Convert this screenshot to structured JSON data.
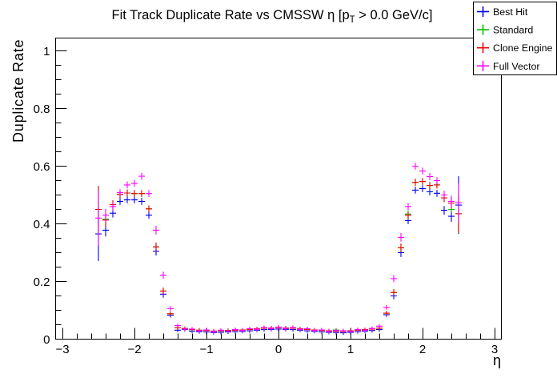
{
  "title": {
    "prefix": "Fit Track Duplicate Rate vs CMSSW η [p",
    "subscript": "T",
    "suffix": " > 0.0 GeV/c]"
  },
  "axes": {
    "x_label": "η",
    "y_label": "Duplicate Rate",
    "x_tick_labels": [
      "−3",
      "−2",
      "−1",
      "0",
      "1",
      "2",
      "3"
    ],
    "x_tick_values": [
      -3,
      -2,
      -1,
      0,
      1,
      2,
      3
    ],
    "y_tick_labels": [
      "0",
      "0.2",
      "0.4",
      "0.6",
      "0.8",
      "1"
    ],
    "y_tick_values": [
      0,
      0.2,
      0.4,
      0.6,
      0.8,
      1
    ],
    "x_minor_step": 0.2,
    "y_minor_step": 0.05
  },
  "legend": {
    "entries": [
      {
        "label": "Best Hit",
        "color": "#0000f0"
      },
      {
        "label": "Standard",
        "color": "#00c000"
      },
      {
        "label": "Clone Engine",
        "color": "#f00000"
      },
      {
        "label": "Full Vector",
        "color": "#ff00ff"
      }
    ]
  },
  "chart_data": {
    "type": "scatter",
    "title": "Fit Track Duplicate Rate vs CMSSW η [p_T > 0.0 GeV/c]",
    "xlabel": "η",
    "ylabel": "Duplicate Rate",
    "xlim": [
      -3.094,
      3.094
    ],
    "ylim": [
      0,
      1.046
    ],
    "xerr": 0.0445,
    "x": [
      -2.5,
      -2.4,
      -2.3,
      -2.2,
      -2.1,
      -2.0,
      -1.9,
      -1.8,
      -1.7,
      -1.6,
      -1.5,
      -1.4,
      -1.3,
      -1.2,
      -1.1,
      -1.0,
      -0.9,
      -0.8,
      -0.7,
      -0.6,
      -0.5,
      -0.4,
      -0.3,
      -0.2,
      -0.1,
      0.0,
      0.1,
      0.2,
      0.3,
      0.4,
      0.5,
      0.6,
      0.7,
      0.8,
      0.9,
      1.0,
      1.1,
      1.2,
      1.3,
      1.4,
      1.5,
      1.6,
      1.7,
      1.8,
      1.9,
      2.0,
      2.1,
      2.2,
      2.3,
      2.4,
      2.5
    ],
    "series": [
      {
        "name": "Best Hit",
        "color": "#0000f0",
        "y": [
          0.365,
          0.378,
          0.437,
          0.478,
          0.483,
          0.483,
          0.478,
          0.43,
          0.305,
          0.156,
          0.083,
          0.031,
          0.033,
          0.028,
          0.026,
          0.025,
          0.023,
          0.024,
          0.025,
          0.026,
          0.027,
          0.029,
          0.031,
          0.033,
          0.034,
          0.035,
          0.034,
          0.033,
          0.031,
          0.029,
          0.027,
          0.025,
          0.024,
          0.023,
          0.022,
          0.024,
          0.026,
          0.028,
          0.03,
          0.033,
          0.085,
          0.15,
          0.3,
          0.411,
          0.517,
          0.522,
          0.511,
          0.506,
          0.447,
          0.426,
          0.465
        ],
        "yerr": [
          0.094,
          0.022,
          0.015,
          0.012,
          0.012,
          0.012,
          0.012,
          0.012,
          0.015,
          0.012,
          0.008,
          0.005,
          0.003,
          0.003,
          0.003,
          0.003,
          0.003,
          0.003,
          0.003,
          0.003,
          0.003,
          0.003,
          0.003,
          0.003,
          0.003,
          0.003,
          0.003,
          0.003,
          0.003,
          0.003,
          0.003,
          0.003,
          0.003,
          0.003,
          0.003,
          0.003,
          0.003,
          0.003,
          0.003,
          0.005,
          0.008,
          0.012,
          0.015,
          0.012,
          0.012,
          0.012,
          0.012,
          0.012,
          0.015,
          0.02,
          0.1
        ]
      },
      {
        "name": "Standard",
        "color": "#00c000",
        "y": [
          0.45,
          0.416,
          0.467,
          0.502,
          0.507,
          0.505,
          0.505,
          0.452,
          0.32,
          0.167,
          0.088,
          0.04,
          0.037,
          0.033,
          0.031,
          0.03,
          0.028,
          0.029,
          0.03,
          0.031,
          0.032,
          0.034,
          0.036,
          0.038,
          0.039,
          0.041,
          0.039,
          0.038,
          0.036,
          0.034,
          0.032,
          0.03,
          0.029,
          0.032,
          0.027,
          0.029,
          0.031,
          0.033,
          0.035,
          0.038,
          0.09,
          0.162,
          0.317,
          0.434,
          0.544,
          0.547,
          0.533,
          0.535,
          0.49,
          0.45,
          0.435
        ],
        "yerr": [
          0.081,
          0.022,
          0.015,
          0.012,
          0.012,
          0.012,
          0.012,
          0.012,
          0.015,
          0.012,
          0.008,
          0.005,
          0.003,
          0.003,
          0.003,
          0.003,
          0.003,
          0.003,
          0.003,
          0.003,
          0.003,
          0.003,
          0.003,
          0.003,
          0.003,
          0.003,
          0.003,
          0.003,
          0.003,
          0.003,
          0.003,
          0.003,
          0.003,
          0.003,
          0.003,
          0.003,
          0.003,
          0.003,
          0.003,
          0.005,
          0.008,
          0.012,
          0.015,
          0.012,
          0.012,
          0.012,
          0.012,
          0.012,
          0.015,
          0.01,
          0.06
        ]
      },
      {
        "name": "Clone Engine",
        "color": "#f00000",
        "y": [
          0.45,
          0.413,
          0.467,
          0.502,
          0.507,
          0.505,
          0.505,
          0.452,
          0.32,
          0.167,
          0.088,
          0.04,
          0.037,
          0.033,
          0.031,
          0.03,
          0.028,
          0.029,
          0.03,
          0.031,
          0.032,
          0.034,
          0.036,
          0.038,
          0.039,
          0.04,
          0.039,
          0.038,
          0.036,
          0.034,
          0.032,
          0.03,
          0.029,
          0.028,
          0.027,
          0.029,
          0.031,
          0.033,
          0.035,
          0.038,
          0.09,
          0.162,
          0.317,
          0.43,
          0.544,
          0.547,
          0.533,
          0.535,
          0.49,
          0.472,
          0.435
        ],
        "yerr": [
          0.081,
          0.022,
          0.015,
          0.012,
          0.012,
          0.012,
          0.012,
          0.012,
          0.015,
          0.012,
          0.008,
          0.005,
          0.003,
          0.003,
          0.003,
          0.003,
          0.003,
          0.003,
          0.003,
          0.003,
          0.003,
          0.003,
          0.003,
          0.003,
          0.003,
          0.003,
          0.003,
          0.003,
          0.003,
          0.003,
          0.003,
          0.003,
          0.003,
          0.003,
          0.003,
          0.003,
          0.003,
          0.003,
          0.003,
          0.005,
          0.008,
          0.012,
          0.015,
          0.012,
          0.012,
          0.012,
          0.012,
          0.012,
          0.015,
          0.02,
          0.067
        ]
      },
      {
        "name": "Full Vector",
        "color": "#ff00ff",
        "y": [
          0.42,
          0.43,
          0.46,
          0.508,
          0.535,
          0.54,
          0.565,
          0.505,
          0.378,
          0.222,
          0.106,
          0.047,
          0.035,
          0.035,
          0.029,
          0.032,
          0.026,
          0.031,
          0.028,
          0.033,
          0.03,
          0.036,
          0.034,
          0.04,
          0.037,
          0.042,
          0.037,
          0.04,
          0.034,
          0.036,
          0.03,
          0.032,
          0.027,
          0.03,
          0.029,
          0.027,
          0.033,
          0.031,
          0.037,
          0.045,
          0.11,
          0.21,
          0.353,
          0.46,
          0.6,
          0.583,
          0.564,
          0.55,
          0.5,
          0.478,
          0.473
        ],
        "yerr": [
          0.095,
          0.022,
          0.015,
          0.012,
          0.012,
          0.012,
          0.012,
          0.012,
          0.015,
          0.012,
          0.008,
          0.005,
          0.003,
          0.003,
          0.003,
          0.003,
          0.003,
          0.003,
          0.003,
          0.003,
          0.003,
          0.003,
          0.003,
          0.003,
          0.003,
          0.003,
          0.003,
          0.003,
          0.003,
          0.003,
          0.003,
          0.003,
          0.003,
          0.003,
          0.003,
          0.003,
          0.003,
          0.003,
          0.003,
          0.005,
          0.008,
          0.012,
          0.015,
          0.012,
          0.012,
          0.012,
          0.012,
          0.012,
          0.015,
          0.02,
          0.068
        ]
      }
    ],
    "legend_position": "top-right",
    "grid": false
  }
}
